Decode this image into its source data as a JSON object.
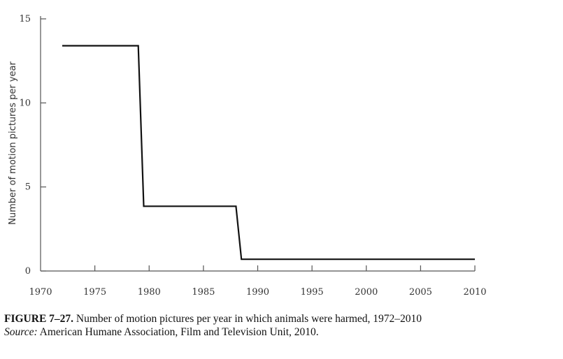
{
  "chart_data": {
    "type": "line",
    "title": "",
    "xlabel": "",
    "ylabel": "Number of motion pictures per year",
    "xlim": [
      1970,
      2010
    ],
    "ylim": [
      0,
      15
    ],
    "x_ticks": [
      1970,
      1975,
      1980,
      1985,
      1990,
      1995,
      2000,
      2005,
      2010
    ],
    "y_ticks": [
      0,
      5,
      10,
      15
    ],
    "grid": false,
    "series": [
      {
        "name": "Motion pictures in which animals were harmed",
        "x": [
          1972,
          1979,
          1979.5,
          1988,
          1988.5,
          2010
        ],
        "y": [
          13.4,
          13.4,
          3.85,
          3.85,
          0.7,
          0.7
        ]
      }
    ]
  },
  "caption": {
    "figure_label": "FIGURE 7–27.",
    "figure_text": "Number of motion pictures per year in which animals were harmed, 1972–2010",
    "source_label": "Source:",
    "source_text": "American Humane Association, Film and Television Unit, 2010."
  }
}
